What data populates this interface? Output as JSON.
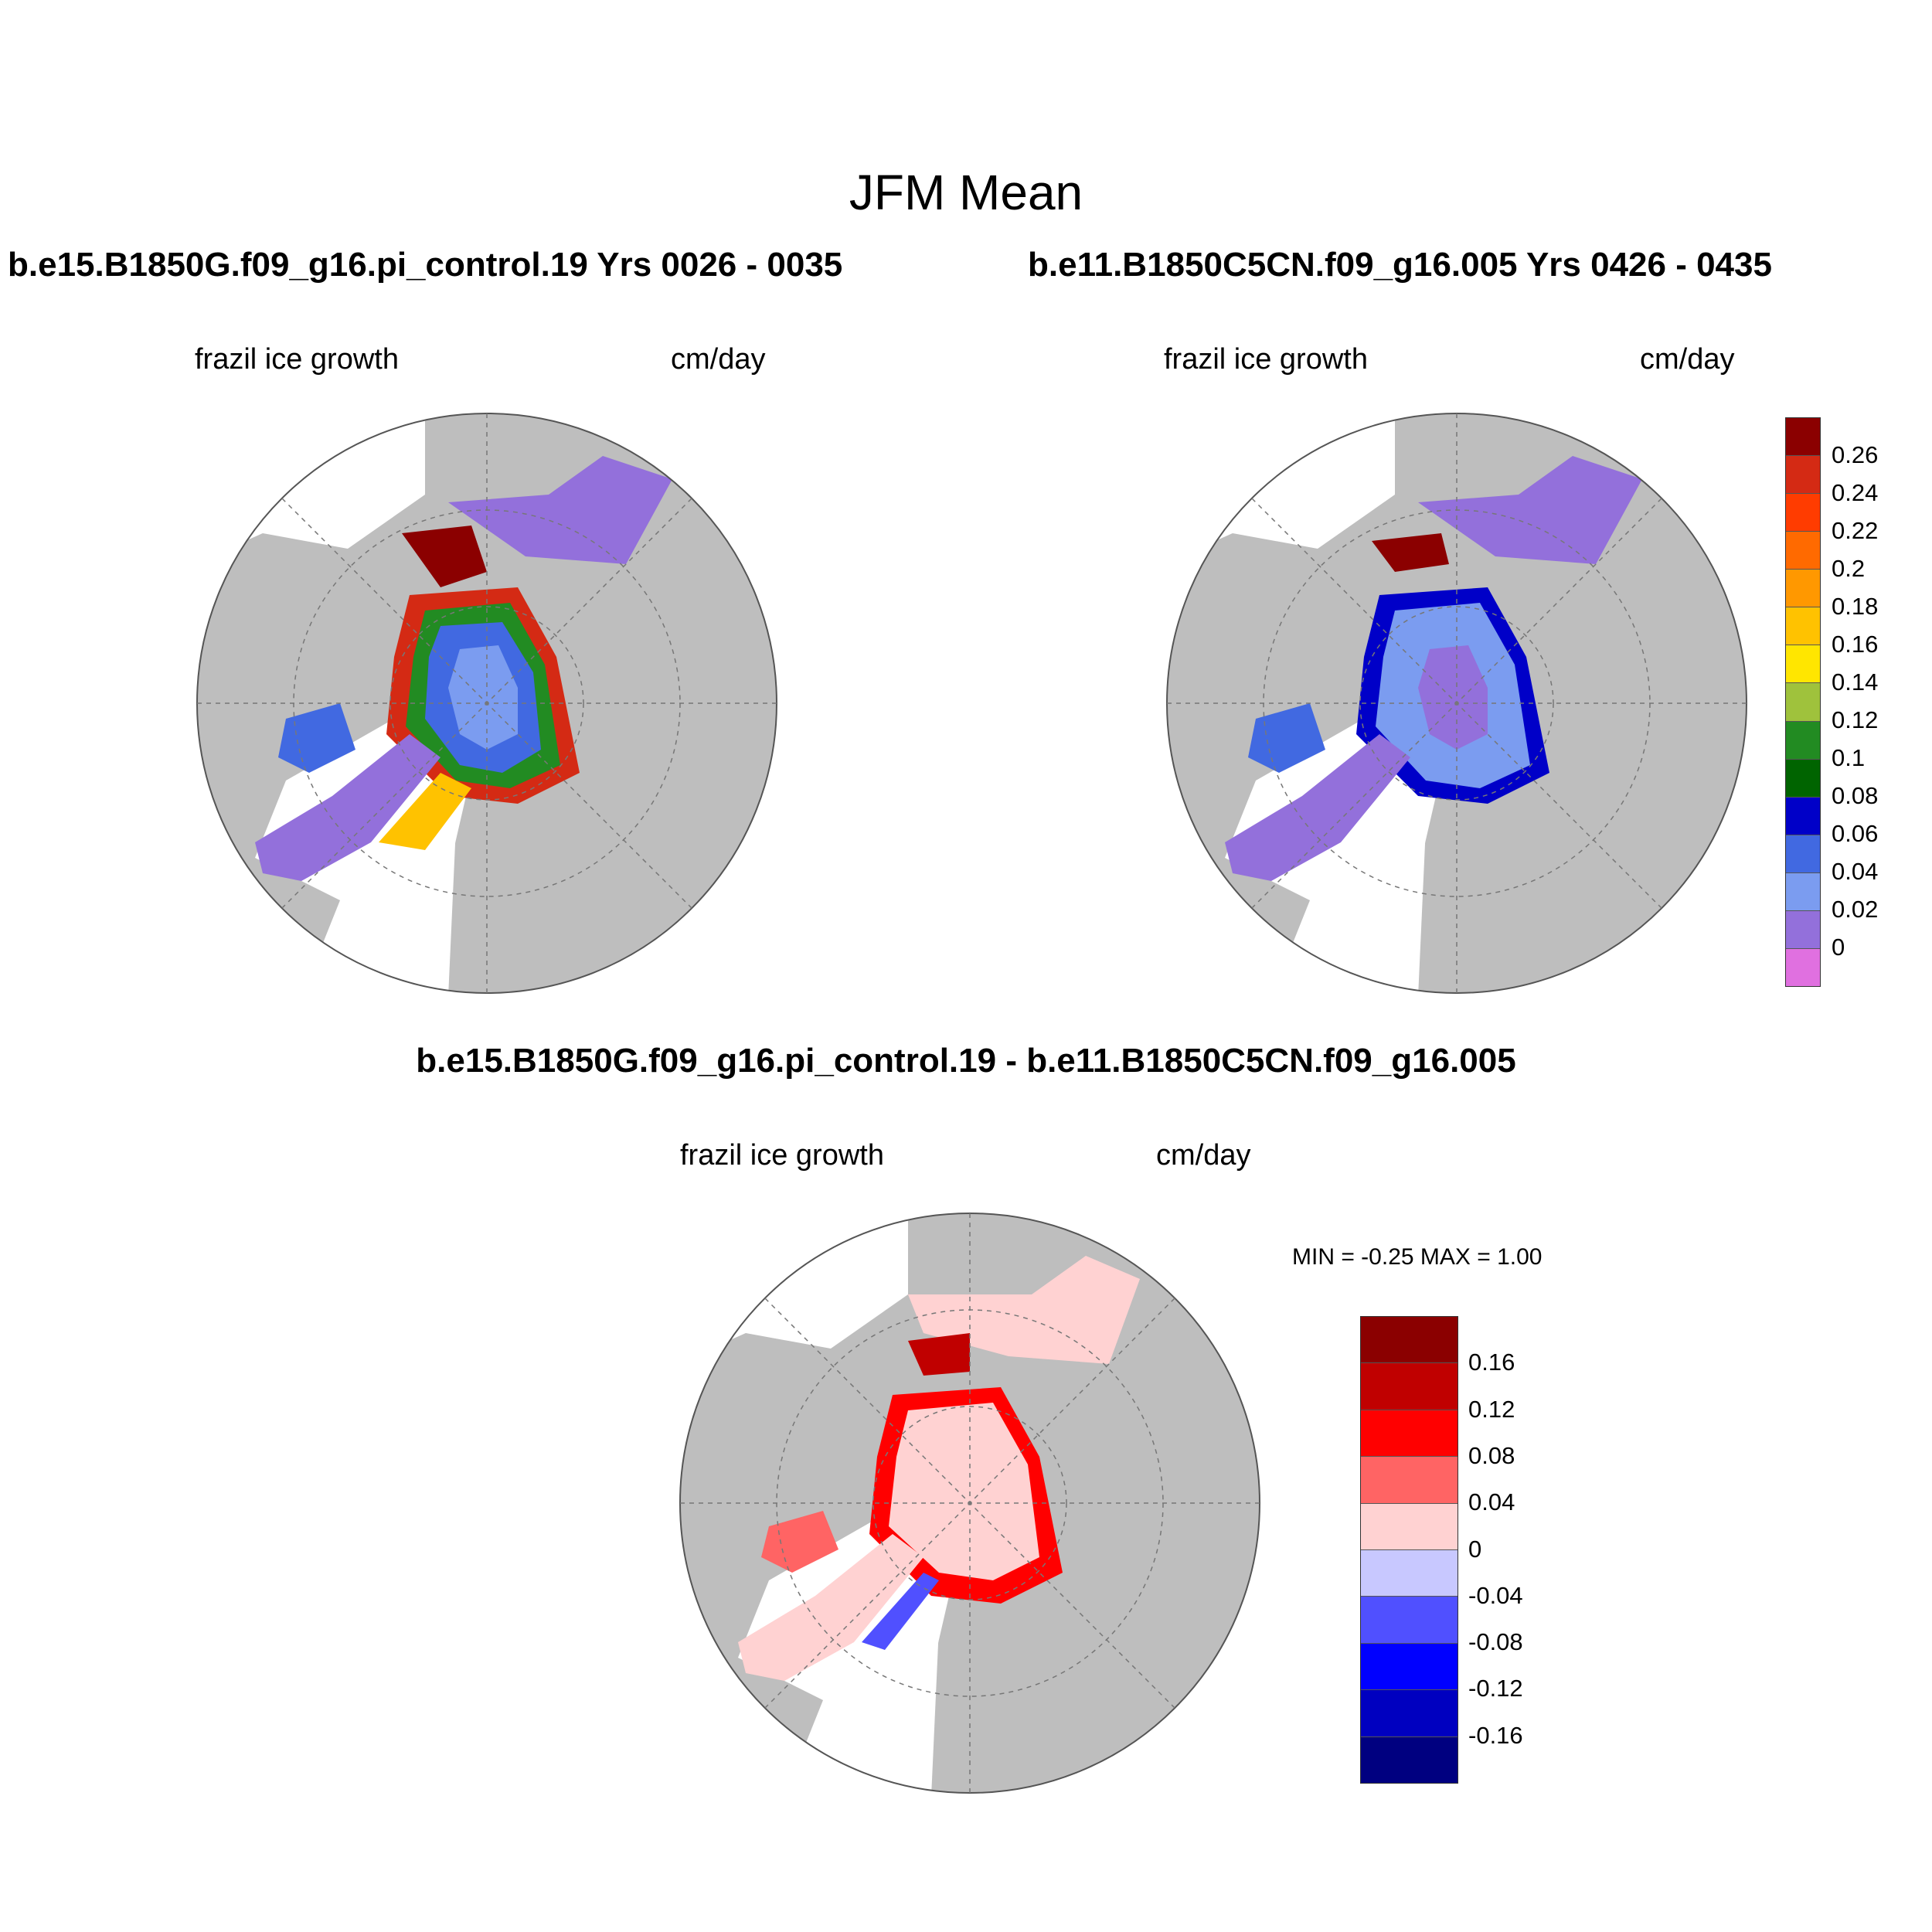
{
  "figure": {
    "title": "JFM Mean",
    "diff_title": "b.e15.B1850G.f09_g16.pi_control.19 - b.e11.B1850C5CN.f09_g16.005",
    "minmax": "MIN =  -0.25 MAX =   1.00"
  },
  "panels": [
    {
      "run": "b.e15.B1850G.f09_g16.pi_control.19  Yrs 0026 - 0035",
      "variable": "frazil ice growth",
      "units": "cm/day"
    },
    {
      "run": "b.e11.B1850C5CN.f09_g16.005  Yrs 0426 - 0435",
      "variable": "frazil ice growth",
      "units": "cm/day"
    },
    {
      "run": "",
      "variable": "frazil ice growth",
      "units": "cm/day"
    }
  ],
  "colorbar_main": {
    "labels": [
      "0.26",
      "0.24",
      "0.22",
      "0.2",
      "0.18",
      "0.16",
      "0.14",
      "0.12",
      "0.1",
      "0.08",
      "0.06",
      "0.04",
      "0.02",
      "0"
    ],
    "colors": [
      "#8b0000",
      "#d42a14",
      "#ff3c00",
      "#ff6a00",
      "#ff9800",
      "#ffc200",
      "#ffe600",
      "#9fc23c",
      "#228b22",
      "#006400",
      "#0000c8",
      "#4169e1",
      "#7b9cf0",
      "#9370db",
      "#e070e0"
    ]
  },
  "colorbar_diff": {
    "labels": [
      "0.16",
      "0.12",
      "0.08",
      "0.04",
      "0",
      "-0.04",
      "-0.08",
      "-0.12",
      "-0.16"
    ],
    "colors": [
      "#8b0000",
      "#c00000",
      "#ff0000",
      "#ff6464",
      "#ffd2d2",
      "#c8c8ff",
      "#5050ff",
      "#0000ff",
      "#0000c0",
      "#000080"
    ]
  },
  "map_colors": {
    "land": "#bebebe",
    "ocean": "#ffffff"
  }
}
